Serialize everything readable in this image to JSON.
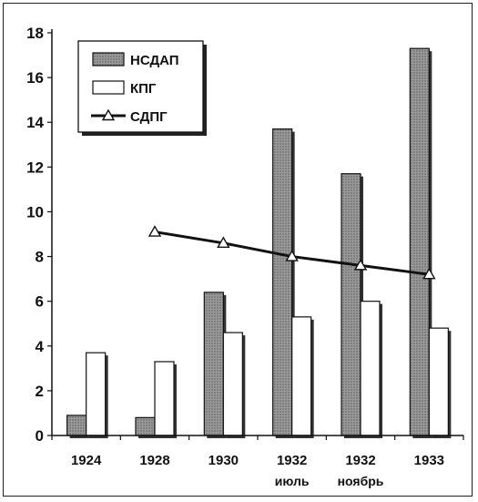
{
  "chart_data": {
    "type": "bar",
    "title": "",
    "xlabel": "",
    "ylabel": "",
    "ylim": [
      0,
      18
    ],
    "yticks": [
      0,
      2,
      4,
      6,
      8,
      10,
      12,
      14,
      16,
      18
    ],
    "categories": [
      {
        "label": "1924",
        "sublabel": ""
      },
      {
        "label": "1928",
        "sublabel": ""
      },
      {
        "label": "1930",
        "sublabel": ""
      },
      {
        "label": "1932",
        "sublabel": "июль"
      },
      {
        "label": "1932",
        "sublabel": "ноябрь"
      },
      {
        "label": "1933",
        "sublabel": ""
      }
    ],
    "series": [
      {
        "name": "НСДАП",
        "kind": "bar",
        "fill": "#8c8c8c",
        "values": [
          0.9,
          0.8,
          6.4,
          13.7,
          11.7,
          17.3
        ]
      },
      {
        "name": "КПГ",
        "kind": "bar",
        "fill": "#ffffff",
        "values": [
          3.7,
          3.3,
          4.6,
          5.3,
          6.0,
          4.8
        ]
      },
      {
        "name": "СДПГ",
        "kind": "line",
        "marker": "triangle",
        "values": [
          null,
          9.1,
          8.6,
          8.0,
          7.6,
          7.2
        ]
      }
    ],
    "legend": {
      "position": "top-left"
    },
    "grid": false
  }
}
